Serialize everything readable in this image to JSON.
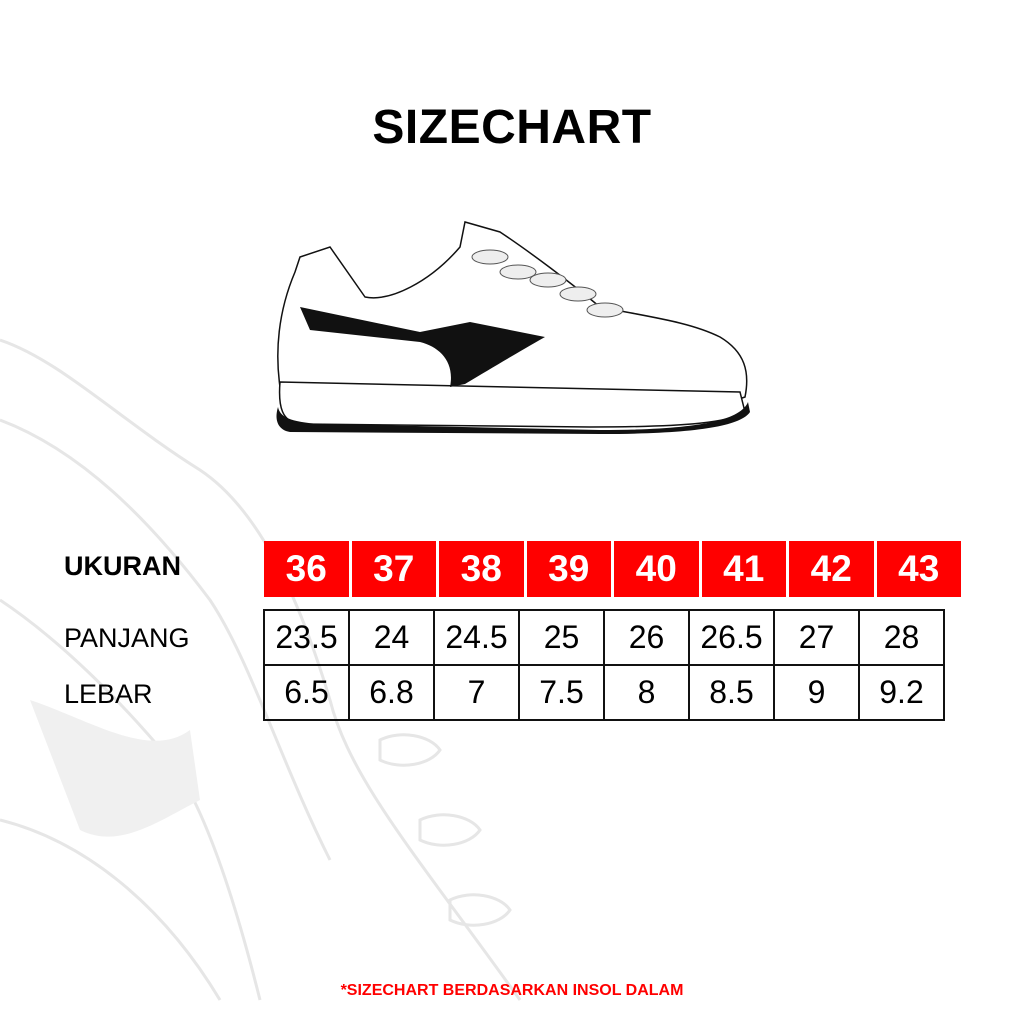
{
  "title": "SIZECHART",
  "colors": {
    "accent": "#ff0000",
    "text": "#000000"
  },
  "table": {
    "header_label": "UKURAN",
    "sizes": [
      "36",
      "37",
      "38",
      "39",
      "40",
      "41",
      "42",
      "43"
    ],
    "rows": [
      {
        "label": "PANJANG",
        "values": [
          "23.5",
          "24",
          "24.5",
          "25",
          "26",
          "26.5",
          "27",
          "28"
        ]
      },
      {
        "label": "LEBAR",
        "values": [
          "6.5",
          "6.8",
          "7",
          "7.5",
          "8",
          "8.5",
          "9",
          "9.2"
        ]
      }
    ]
  },
  "footnote": "*SIZECHART BERDASARKAN INSOL DALAM"
}
